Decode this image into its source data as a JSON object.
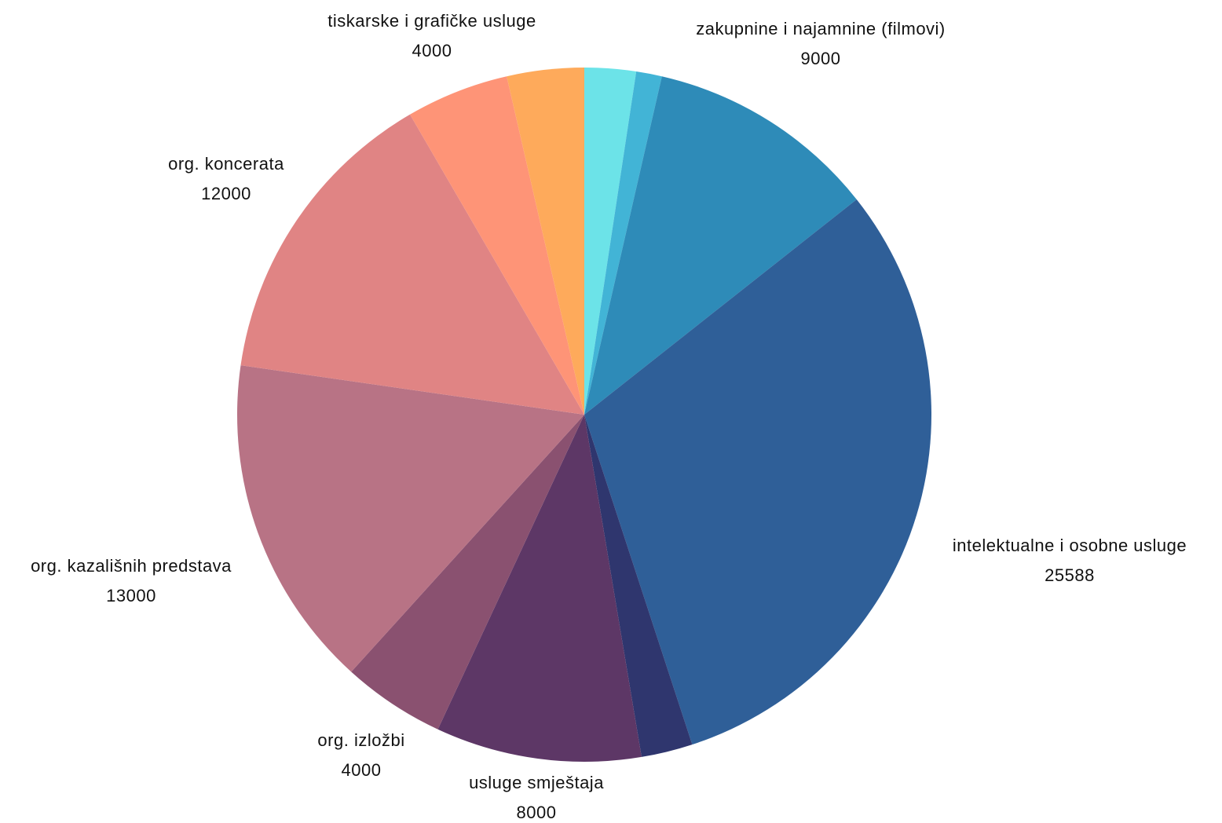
{
  "chart_data": {
    "type": "pie",
    "categories": [
      null,
      null,
      "zakupnine i najamnine (filmovi)",
      "intelektualne i osobne usluge",
      null,
      "usluge smještaja",
      "org. izložbi",
      "org. kazališnih predstava",
      "org. koncerata",
      "tiskarske i grafičke usluge",
      null
    ],
    "values": [
      2000,
      1000,
      9000,
      25588,
      2000,
      8000,
      4000,
      13000,
      12000,
      4000,
      3000
    ],
    "colors": [
      "#6ce3e8",
      "#42b4d6",
      "#2e8bb8",
      "#2f5f98",
      "#2f366e",
      "#5d3766",
      "#8a5170",
      "#b87385",
      "#e08484",
      "#fe9477",
      "#feaa5b"
    ]
  }
}
